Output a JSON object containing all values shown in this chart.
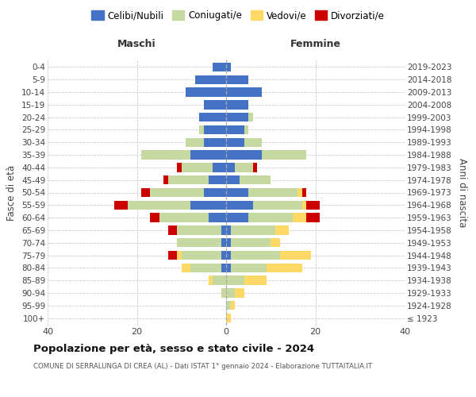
{
  "age_groups": [
    "100+",
    "95-99",
    "90-94",
    "85-89",
    "80-84",
    "75-79",
    "70-74",
    "65-69",
    "60-64",
    "55-59",
    "50-54",
    "45-49",
    "40-44",
    "35-39",
    "30-34",
    "25-29",
    "20-24",
    "15-19",
    "10-14",
    "5-9",
    "0-4"
  ],
  "birth_years": [
    "≤ 1923",
    "1924-1928",
    "1929-1933",
    "1934-1938",
    "1939-1943",
    "1944-1948",
    "1949-1953",
    "1954-1958",
    "1959-1963",
    "1964-1968",
    "1969-1973",
    "1974-1978",
    "1979-1983",
    "1984-1988",
    "1989-1993",
    "1994-1998",
    "1999-2003",
    "2004-2008",
    "2009-2013",
    "2014-2018",
    "2019-2023"
  ],
  "colors": {
    "celibi": "#4472C4",
    "coniugati": "#c5d9a0",
    "vedovi": "#FFD966",
    "divorziati": "#CC0000"
  },
  "maschi": {
    "celibi": [
      0,
      0,
      0,
      0,
      1,
      1,
      1,
      1,
      4,
      8,
      5,
      4,
      3,
      8,
      5,
      5,
      6,
      5,
      9,
      7,
      3
    ],
    "coniugati": [
      0,
      0,
      1,
      3,
      7,
      9,
      10,
      10,
      11,
      14,
      12,
      9,
      7,
      11,
      4,
      1,
      0,
      0,
      0,
      0,
      0
    ],
    "vedovi": [
      0,
      0,
      0,
      1,
      2,
      1,
      0,
      0,
      0,
      0,
      0,
      0,
      0,
      0,
      0,
      0,
      0,
      0,
      0,
      0,
      0
    ],
    "divorziati": [
      0,
      0,
      0,
      0,
      0,
      2,
      0,
      2,
      2,
      3,
      2,
      1,
      1,
      0,
      0,
      0,
      0,
      0,
      0,
      0,
      0
    ]
  },
  "femmine": {
    "celibi": [
      0,
      0,
      0,
      0,
      1,
      1,
      1,
      1,
      5,
      6,
      5,
      3,
      2,
      8,
      4,
      4,
      5,
      5,
      8,
      5,
      1
    ],
    "coniugati": [
      0,
      1,
      2,
      4,
      8,
      11,
      9,
      10,
      10,
      11,
      11,
      7,
      4,
      10,
      4,
      1,
      1,
      0,
      0,
      0,
      0
    ],
    "vedovi": [
      1,
      1,
      2,
      5,
      8,
      7,
      2,
      3,
      3,
      1,
      1,
      0,
      0,
      0,
      0,
      0,
      0,
      0,
      0,
      0,
      0
    ],
    "divorziati": [
      0,
      0,
      0,
      0,
      0,
      0,
      0,
      0,
      3,
      3,
      1,
      0,
      1,
      0,
      0,
      0,
      0,
      0,
      0,
      0,
      0
    ]
  },
  "xlim": 40,
  "title": "Popolazione per età, sesso e stato civile - 2024",
  "subtitle": "COMUNE DI SERRALUNGA DI CREA (AL) - Dati ISTAT 1° gennaio 2024 - Elaborazione TUTTAITALIA.IT",
  "ylabel_left": "Fasce di età",
  "ylabel_right": "Anni di nascita",
  "xlabel_maschi": "Maschi",
  "xlabel_femmine": "Femmine",
  "legend_labels": [
    "Celibi/Nubili",
    "Coniugati/e",
    "Vedovi/e",
    "Divorziati/e"
  ],
  "legend_colors": [
    "#4472C4",
    "#c5d9a0",
    "#FFD966",
    "#CC0000"
  ],
  "bg_color": "#ffffff",
  "grid_color": "#cccccc",
  "text_color": "#444444",
  "title_color": "#111111",
  "subtitle_color": "#555555"
}
